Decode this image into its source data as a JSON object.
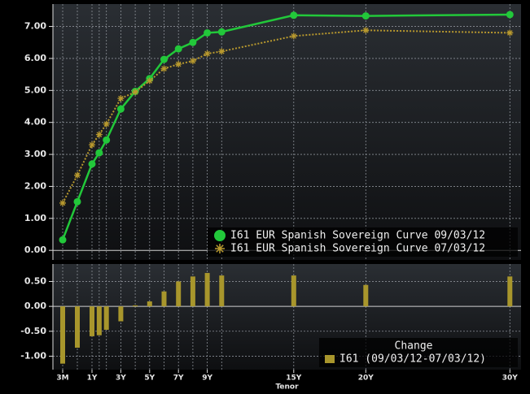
{
  "chart_data": [
    {
      "type": "line",
      "ylim": [
        -0.3,
        7.7
      ],
      "yticks": [
        {
          "value": 0,
          "label": "0.00"
        },
        {
          "value": 1,
          "label": "1.00"
        },
        {
          "value": 2,
          "label": "2.00"
        },
        {
          "value": 3,
          "label": "3.00"
        },
        {
          "value": 4,
          "label": "4.00"
        },
        {
          "value": 5,
          "label": "5.00"
        },
        {
          "value": 6,
          "label": "6.00"
        },
        {
          "value": 7,
          "label": "7.00"
        }
      ],
      "grid": true,
      "legend": "bottom-right",
      "x": [
        0.25,
        0.5,
        1,
        1.5,
        2,
        3,
        4,
        5,
        6,
        7,
        8,
        9,
        10,
        15,
        20,
        30
      ],
      "series": [
        {
          "name": "I61 EUR Spanish Sovereign Curve 09/03/12",
          "color": "#22c83a",
          "marker": "circle",
          "values": [
            0.33,
            1.52,
            2.7,
            3.05,
            3.45,
            4.42,
            4.97,
            5.37,
            5.97,
            6.3,
            6.5,
            6.8,
            6.83,
            7.35,
            7.33,
            7.37
          ]
        },
        {
          "name": "I61 EUR Spanish Sovereign Curve 07/03/12",
          "color": "#b8992e",
          "marker": "star",
          "values": [
            1.48,
            2.35,
            3.3,
            3.62,
            3.95,
            4.75,
            4.95,
            5.3,
            5.68,
            5.82,
            5.92,
            6.15,
            6.22,
            6.7,
            6.88,
            6.8
          ]
        }
      ]
    },
    {
      "type": "bar",
      "ylim": [
        -1.27,
        0.85
      ],
      "yticks": [
        {
          "value": 0.5,
          "label": "0.50"
        },
        {
          "value": 0,
          "label": "0.00"
        },
        {
          "value": -0.5,
          "label": "-0.50"
        },
        {
          "value": -1,
          "label": "-1.00"
        }
      ],
      "grid": true,
      "legend": "bottom-right",
      "legend_title": "Change",
      "x": [
        0.25,
        0.5,
        1,
        1.5,
        2,
        3,
        4,
        5,
        6,
        7,
        8,
        9,
        10,
        15,
        20,
        30
      ],
      "xticks": [
        {
          "value": 0.25,
          "label": "3M"
        },
        {
          "value": 1,
          "label": "1Y"
        },
        {
          "value": 3,
          "label": "3Y"
        },
        {
          "value": 5,
          "label": "5Y"
        },
        {
          "value": 7,
          "label": "7Y"
        },
        {
          "value": 9,
          "label": "9Y"
        },
        {
          "value": 15,
          "label": "15Y"
        },
        {
          "value": 20,
          "label": "20Y"
        },
        {
          "value": 30,
          "label": "30Y"
        }
      ],
      "xlabel": "Tenor",
      "series": [
        {
          "name": "I61 (09/03/12-07/03/12)",
          "color": "#a8962c",
          "values": [
            -1.15,
            -0.83,
            -0.6,
            -0.58,
            -0.47,
            -0.3,
            0.02,
            0.1,
            0.3,
            0.5,
            0.6,
            0.67,
            0.62,
            0.62,
            0.43,
            0.6
          ]
        }
      ]
    }
  ]
}
